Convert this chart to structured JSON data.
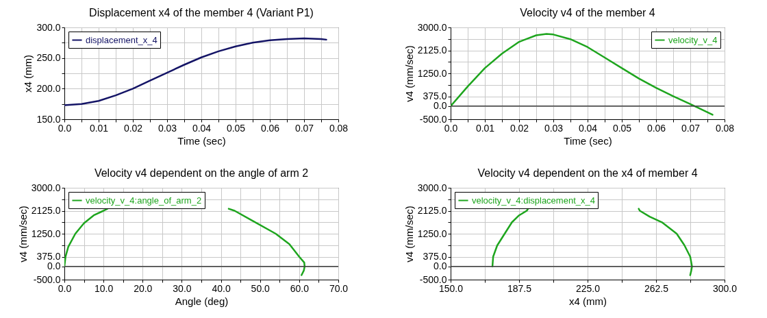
{
  "chart_data": [
    {
      "type": "line",
      "title": "Displacement x4 of the member 4 (Variant P1)",
      "xlabel": "Time (sec)",
      "ylabel": "x4 (mm)",
      "legend": "top left",
      "grid": true,
      "line_style": "solid",
      "xlim": [
        0,
        0.08
      ],
      "xticks": [
        {
          "value": 0,
          "label": "0.0"
        },
        {
          "value": 0.005,
          "label": null
        },
        0.01,
        {
          "value": 0.015,
          "label": null
        },
        0.02,
        {
          "value": 0.025,
          "label": null
        },
        0.03,
        {
          "value": 0.035,
          "label": null
        },
        0.04,
        {
          "value": 0.045,
          "label": null
        },
        0.05,
        {
          "value": 0.055,
          "label": null
        },
        0.06,
        {
          "value": 0.065,
          "label": null
        },
        0.07,
        {
          "value": 0.075,
          "label": null
        },
        0.08
      ],
      "ylim": [
        150,
        300
      ],
      "yticks": [
        {
          "value": 150,
          "label": "150.0"
        },
        {
          "value": 175,
          "label": null
        },
        {
          "value": 200,
          "label": "200.0"
        },
        {
          "value": 225,
          "label": null
        },
        {
          "value": 250,
          "label": "250.0"
        },
        {
          "value": 275,
          "label": null
        },
        {
          "value": 300,
          "label": "300.0"
        }
      ],
      "series": [
        {
          "name": "displacement_x_4",
          "color": "#141466",
          "x": [
            0,
            0.005,
            0.01,
            0.015,
            0.02,
            0.025,
            0.03,
            0.035,
            0.04,
            0.045,
            0.05,
            0.055,
            0.06,
            0.065,
            0.07,
            0.075,
            0.0765
          ],
          "values": [
            173,
            175,
            180,
            189,
            200,
            213,
            226,
            239,
            251,
            261,
            269,
            275,
            279,
            281,
            282,
            281,
            280
          ]
        }
      ]
    },
    {
      "type": "line",
      "title": "Velocity v4 of the member 4",
      "xlabel": "Time (sec)",
      "ylabel": "v4 (mm/sec)",
      "legend": "top right",
      "grid": true,
      "line_style": "solid",
      "xlim": [
        0,
        0.08
      ],
      "xticks": [
        {
          "value": 0,
          "label": "0.0"
        },
        {
          "value": 0.005,
          "label": null
        },
        0.01,
        {
          "value": 0.015,
          "label": null
        },
        0.02,
        {
          "value": 0.025,
          "label": null
        },
        0.03,
        {
          "value": 0.035,
          "label": null
        },
        0.04,
        {
          "value": 0.045,
          "label": null
        },
        0.05,
        {
          "value": 0.055,
          "label": null
        },
        0.06,
        {
          "value": 0.065,
          "label": null
        },
        0.07,
        {
          "value": 0.075,
          "label": null
        },
        0.08
      ],
      "ylim": [
        -500,
        3000
      ],
      "yticks": [
        {
          "value": -500,
          "label": "-500.0"
        },
        {
          "value": 0,
          "label": "0.0"
        },
        {
          "value": 375,
          "label": "375.0"
        },
        {
          "value": 812.5,
          "label": null
        },
        {
          "value": 1250,
          "label": "1250.0"
        },
        {
          "value": 1687.5,
          "label": null
        },
        {
          "value": 2125,
          "label": "2125.0"
        },
        {
          "value": 2562.5,
          "label": null
        },
        {
          "value": 3000,
          "label": "3000.0"
        }
      ],
      "ref_lines": [
        {
          "axis": "y",
          "value": 0,
          "color": "#404040"
        }
      ],
      "series": [
        {
          "name": "velocity_v_4",
          "color": "#1ea51e",
          "x": [
            0,
            0.005,
            0.01,
            0.015,
            0.02,
            0.025,
            0.028,
            0.03,
            0.035,
            0.04,
            0.045,
            0.05,
            0.055,
            0.06,
            0.065,
            0.07,
            0.0765
          ],
          "values": [
            0,
            750,
            1450,
            2000,
            2450,
            2700,
            2750,
            2730,
            2550,
            2250,
            1850,
            1450,
            1050,
            700,
            380,
            80,
            -330
          ]
        }
      ]
    },
    {
      "type": "line",
      "title": "Velocity v4 dependent on the angle of arm 2",
      "xlabel": "Angle (deg)",
      "ylabel": "v4 (mm/sec)",
      "legend": "top left",
      "grid": true,
      "line_style": "solid",
      "xlim": [
        0,
        70
      ],
      "xticks": [
        {
          "value": 0,
          "label": "0.0"
        },
        {
          "value": 5,
          "label": null
        },
        {
          "value": 10,
          "label": "10.0"
        },
        {
          "value": 15,
          "label": null
        },
        {
          "value": 20,
          "label": "20.0"
        },
        {
          "value": 25,
          "label": null
        },
        {
          "value": 30,
          "label": "30.0"
        },
        {
          "value": 35,
          "label": null
        },
        {
          "value": 40,
          "label": "40.0"
        },
        {
          "value": 45,
          "label": null
        },
        {
          "value": 50,
          "label": "50.0"
        },
        {
          "value": 55,
          "label": null
        },
        {
          "value": 60,
          "label": "60.0"
        },
        {
          "value": 65,
          "label": null
        },
        {
          "value": 70,
          "label": "70.0"
        }
      ],
      "ylim": [
        -500,
        3000
      ],
      "yticks": [
        {
          "value": -500,
          "label": "-500.0"
        },
        {
          "value": 0,
          "label": "0.0"
        },
        {
          "value": 375,
          "label": "375.0"
        },
        {
          "value": 812.5,
          "label": null
        },
        {
          "value": 1250,
          "label": "1250.0"
        },
        {
          "value": 1687.5,
          "label": null
        },
        {
          "value": 2125,
          "label": "2125.0"
        },
        {
          "value": 2562.5,
          "label": null
        },
        {
          "value": 3000,
          "label": "3000.0"
        }
      ],
      "ref_lines": [
        {
          "axis": "y",
          "value": 0,
          "color": "#404040"
        }
      ],
      "series": [
        {
          "name": "velocity_v_4:angle_of_arm_2",
          "color": "#1ea51e",
          "x": [
            0,
            0.3,
            1,
            2.8,
            5,
            7.5,
            10,
            11,
            26,
            42,
            43.5,
            48,
            54,
            57.5,
            60,
            61.3,
            61.4,
            61.2,
            60.6
          ],
          "values": [
            0,
            375,
            750,
            1250,
            1650,
            1950,
            2125,
            2200,
            null,
            2200,
            2125,
            1750,
            1250,
            850,
            375,
            150,
            0,
            -150,
            -330
          ]
        }
      ]
    },
    {
      "type": "line",
      "title": "Velocity v4 dependent on the x4 of member 4",
      "xlabel": "x4 (mm)",
      "ylabel": "v4 (mm/sec)",
      "legend": "top left",
      "grid": true,
      "line_style": "solid",
      "xlim": [
        150,
        300
      ],
      "xticks": [
        {
          "value": 150,
          "label": "150.0"
        },
        {
          "value": 168.75,
          "label": null
        },
        {
          "value": 187.5,
          "label": "187.5"
        },
        {
          "value": 206.25,
          "label": null
        },
        {
          "value": 225,
          "label": "225.0"
        },
        {
          "value": 243.75,
          "label": null
        },
        {
          "value": 262.5,
          "label": "262.5"
        },
        {
          "value": 281.25,
          "label": null
        },
        {
          "value": 300,
          "label": "300.0"
        }
      ],
      "ylim": [
        -500,
        3000
      ],
      "yticks": [
        {
          "value": -500,
          "label": "-500.0"
        },
        {
          "value": 0,
          "label": "0.0"
        },
        {
          "value": 375,
          "label": "375.0"
        },
        {
          "value": 812.5,
          "label": null
        },
        {
          "value": 1250,
          "label": "1250.0"
        },
        {
          "value": 1687.5,
          "label": null
        },
        {
          "value": 2125,
          "label": "2125.0"
        },
        {
          "value": 2562.5,
          "label": null
        },
        {
          "value": 3000,
          "label": "3000.0"
        }
      ],
      "ref_lines": [
        {
          "axis": "y",
          "value": 0,
          "color": "#404040"
        }
      ],
      "series": [
        {
          "name": "velocity_v_4:displacement_x_4",
          "color": "#1ea51e",
          "x": [
            172.9,
            173.3,
            175.5,
            179.6,
            183.6,
            187.5,
            191.7,
            192.4,
            222,
            253,
            253.6,
            259,
            265.7,
            273.8,
            278,
            281.2,
            282.2,
            281.8,
            281.2
          ],
          "values": [
            0,
            375,
            800,
            1250,
            1687,
            1950,
            2125,
            2200,
            null,
            2200,
            2125,
            1900,
            1687,
            1250,
            812,
            375,
            0,
            -150,
            -330
          ]
        }
      ]
    }
  ]
}
